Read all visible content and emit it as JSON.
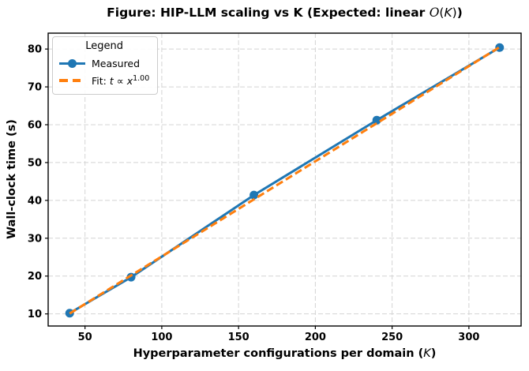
{
  "figure": {
    "title": {
      "prefix": "Figure: HIP-LLM scaling vs K (Expected: linear ",
      "big_o": "O",
      "math_open": "(",
      "math_k": "K",
      "math_close": ")",
      "suffix": ")"
    },
    "xlabel": {
      "prefix": "Hyperparameter configurations per domain (",
      "k": "K",
      "suffix": ")"
    },
    "ylabel": "Wall-clock time (s)"
  },
  "legend": {
    "title": "Legend",
    "measured_label": "Measured",
    "fit": {
      "prefix": "Fit: ",
      "t": "t",
      "propto": "∝",
      "x": "x",
      "exponent": "1.00"
    }
  },
  "colors": {
    "measured": "#1f77b4",
    "fit": "#ff7f0e",
    "grid": "#d4d4d4",
    "spine": "#000000"
  },
  "chart_data": {
    "type": "line",
    "title": "Figure: HIP-LLM scaling vs K (Expected: linear O(K))",
    "xlabel": "Hyperparameter configurations per domain (K)",
    "ylabel": "Wall-clock time (s)",
    "x_ticks": [
      50,
      100,
      150,
      200,
      250,
      300
    ],
    "y_ticks": [
      10,
      20,
      30,
      40,
      50,
      60,
      70,
      80
    ],
    "xlim": [
      26,
      334
    ],
    "ylim": [
      6.8,
      84.2
    ],
    "grid": true,
    "legend_position": "upper left",
    "series": [
      {
        "name": "Measured",
        "style": "solid",
        "markers": true,
        "color": "#1f77b4",
        "x": [
          40,
          80,
          160,
          240,
          320
        ],
        "y": [
          10.2,
          19.7,
          41.4,
          61.2,
          80.4
        ]
      },
      {
        "name": "Fit: t ∝ x^1.00",
        "style": "dashed",
        "markers": false,
        "color": "#ff7f0e",
        "x": [
          40,
          320
        ],
        "y": [
          10.1,
          80.5
        ]
      }
    ]
  }
}
